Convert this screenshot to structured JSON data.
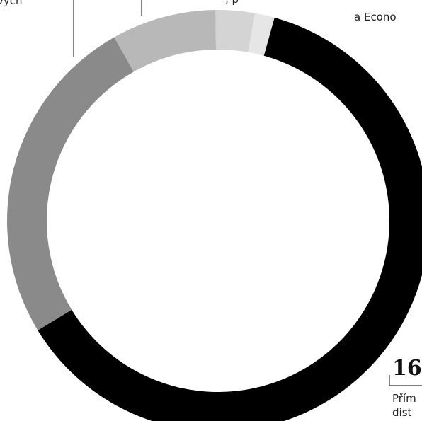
{
  "chart_data": {
    "type": "pie",
    "donut": true,
    "categories": [
      "",
      "",
      "",
      "",
      ""
    ],
    "values": [
      62,
      25.5,
      8,
      3,
      1.5
    ],
    "colors": [
      "#000000",
      "#8a8a8a",
      "#b8b8b8",
      "#d4d4d4",
      "#e6e6e6"
    ],
    "annotations": {
      "top_left_fragment": "vých",
      "top_middle_fragment": ", p",
      "top_right_fragment": "a Econo",
      "big_number": "16",
      "bottom_right_line1": "Přím",
      "bottom_right_line2": "dist"
    }
  }
}
